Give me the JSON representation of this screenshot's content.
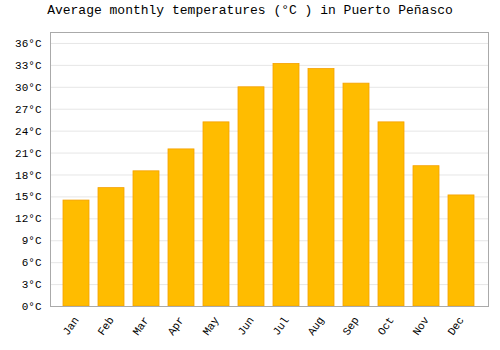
{
  "chart_data": {
    "type": "bar",
    "title": "Average monthly temperatures (°C ) in Puerto Peñasco",
    "categories": [
      "Jan",
      "Feb",
      "Mar",
      "Apr",
      "May",
      "Jun",
      "Jul",
      "Aug",
      "Sep",
      "Oct",
      "Nov",
      "Dec"
    ],
    "values": [
      14.5,
      16.2,
      18.5,
      21.5,
      25.2,
      30.0,
      33.2,
      32.5,
      30.5,
      25.2,
      19.2,
      15.2
    ],
    "color": "#FFBC00",
    "ylim": [
      0,
      37.5
    ],
    "yticks": [
      {
        "value": 0,
        "label": "0°C"
      },
      {
        "value": 3,
        "label": "3°C"
      },
      {
        "value": 6,
        "label": "6°C"
      },
      {
        "value": 9,
        "label": "9°C"
      },
      {
        "value": 12,
        "label": "12°C"
      },
      {
        "value": 15,
        "label": "15°C"
      },
      {
        "value": 18,
        "label": "18°C"
      },
      {
        "value": 21,
        "label": "21°C"
      },
      {
        "value": 24,
        "label": "24°C"
      },
      {
        "value": 27,
        "label": "27°C"
      },
      {
        "value": 30,
        "label": "30°C"
      },
      {
        "value": 33,
        "label": "33°C"
      },
      {
        "value": 36,
        "label": "36°C"
      }
    ],
    "grid": true
  }
}
